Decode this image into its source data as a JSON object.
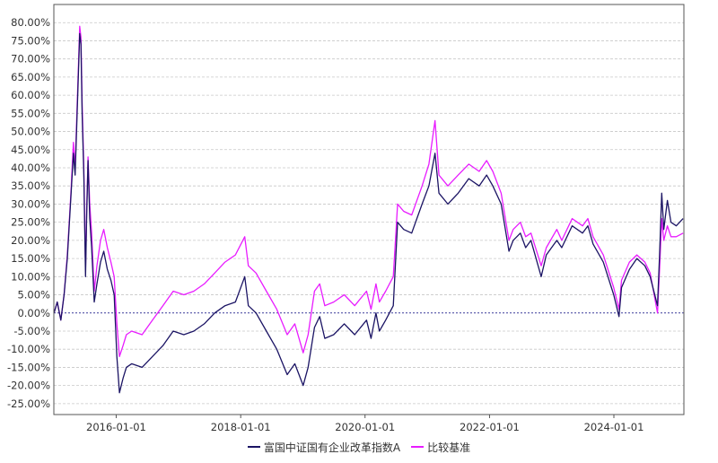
{
  "chart_data": {
    "type": "line",
    "title": "",
    "xlabel": "",
    "ylabel": "",
    "x_tick_labels": [
      "2016-01-01",
      "2018-01-01",
      "2020-01-01",
      "2022-01-01",
      "2024-01-01"
    ],
    "y_tick_labels": [
      "80.00%",
      "75.00%",
      "70.00%",
      "65.00%",
      "60.00%",
      "55.00%",
      "50.00%",
      "45.00%",
      "40.00%",
      "35.00%",
      "30.00%",
      "25.00%",
      "20.00%",
      "15.00%",
      "10.00%",
      "5.00%",
      "0.00%",
      "-5.00%",
      "-10.00%",
      "-15.00%",
      "-20.00%",
      "-25.00%"
    ],
    "x_range": [
      "2014-12-31",
      "2025-02-15"
    ],
    "ylim": [
      -28,
      85
    ],
    "grid": "horizontal dashed",
    "legend_position": "bottom",
    "series": [
      {
        "name": "富国中证国有企业改革指数A",
        "color": "#1b1464",
        "points": [
          [
            "2015-01-01",
            0
          ],
          [
            "2015-01-20",
            3
          ],
          [
            "2015-02-10",
            -2
          ],
          [
            "2015-03-01",
            5
          ],
          [
            "2015-03-20",
            15
          ],
          [
            "2015-04-10",
            32
          ],
          [
            "2015-04-25",
            44
          ],
          [
            "2015-05-05",
            38
          ],
          [
            "2015-05-20",
            60
          ],
          [
            "2015-06-01",
            77
          ],
          [
            "2015-06-08",
            74
          ],
          [
            "2015-06-15",
            55
          ],
          [
            "2015-06-25",
            38
          ],
          [
            "2015-07-05",
            10
          ],
          [
            "2015-07-12",
            27
          ],
          [
            "2015-07-20",
            42
          ],
          [
            "2015-07-30",
            26
          ],
          [
            "2015-08-10",
            18
          ],
          [
            "2015-08-25",
            3
          ],
          [
            "2015-09-10",
            8
          ],
          [
            "2015-10-01",
            14
          ],
          [
            "2015-10-20",
            17
          ],
          [
            "2015-11-10",
            12
          ],
          [
            "2015-12-01",
            9
          ],
          [
            "2015-12-20",
            5
          ],
          [
            "2016-01-05",
            -12
          ],
          [
            "2016-01-20",
            -22
          ],
          [
            "2016-02-10",
            -18
          ],
          [
            "2016-03-01",
            -15
          ],
          [
            "2016-04-01",
            -14
          ],
          [
            "2016-06-01",
            -15
          ],
          [
            "2016-08-01",
            -12
          ],
          [
            "2016-10-01",
            -9
          ],
          [
            "2016-12-01",
            -5
          ],
          [
            "2017-02-01",
            -6
          ],
          [
            "2017-04-01",
            -5
          ],
          [
            "2017-06-01",
            -3
          ],
          [
            "2017-08-01",
            0
          ],
          [
            "2017-10-01",
            2
          ],
          [
            "2017-12-01",
            3
          ],
          [
            "2018-01-25",
            10
          ],
          [
            "2018-02-15",
            2
          ],
          [
            "2018-04-01",
            0
          ],
          [
            "2018-06-01",
            -5
          ],
          [
            "2018-08-01",
            -10
          ],
          [
            "2018-10-01",
            -17
          ],
          [
            "2018-11-15",
            -14
          ],
          [
            "2019-01-03",
            -20
          ],
          [
            "2019-02-01",
            -15
          ],
          [
            "2019-03-10",
            -4
          ],
          [
            "2019-04-10",
            -1
          ],
          [
            "2019-05-10",
            -7
          ],
          [
            "2019-07-01",
            -6
          ],
          [
            "2019-09-01",
            -3
          ],
          [
            "2019-11-01",
            -6
          ],
          [
            "2020-01-10",
            -2
          ],
          [
            "2020-02-05",
            -7
          ],
          [
            "2020-03-05",
            0
          ],
          [
            "2020-03-25",
            -5
          ],
          [
            "2020-05-01",
            -2
          ],
          [
            "2020-06-15",
            2
          ],
          [
            "2020-07-10",
            25
          ],
          [
            "2020-08-15",
            23
          ],
          [
            "2020-10-01",
            22
          ],
          [
            "2020-12-01",
            30
          ],
          [
            "2021-01-10",
            35
          ],
          [
            "2021-02-15",
            44
          ],
          [
            "2021-03-10",
            33
          ],
          [
            "2021-05-01",
            30
          ],
          [
            "2021-07-01",
            33
          ],
          [
            "2021-09-01",
            37
          ],
          [
            "2021-11-01",
            35
          ],
          [
            "2021-12-15",
            38
          ],
          [
            "2022-01-20",
            35
          ],
          [
            "2022-03-10",
            30
          ],
          [
            "2022-04-25",
            17
          ],
          [
            "2022-05-20",
            20
          ],
          [
            "2022-07-01",
            22
          ],
          [
            "2022-08-01",
            18
          ],
          [
            "2022-09-01",
            20
          ],
          [
            "2022-10-31",
            10
          ],
          [
            "2022-11-30",
            16
          ],
          [
            "2023-01-31",
            20
          ],
          [
            "2023-03-01",
            18
          ],
          [
            "2023-05-01",
            24
          ],
          [
            "2023-07-01",
            22
          ],
          [
            "2023-08-01",
            24
          ],
          [
            "2023-09-01",
            19
          ],
          [
            "2023-10-31",
            14
          ],
          [
            "2023-12-31",
            5
          ],
          [
            "2024-01-31",
            -1
          ],
          [
            "2024-02-15",
            7
          ],
          [
            "2024-04-01",
            12
          ],
          [
            "2024-05-15",
            15
          ],
          [
            "2024-07-01",
            13
          ],
          [
            "2024-08-01",
            10
          ],
          [
            "2024-09-13",
            2
          ],
          [
            "2024-09-25",
            16
          ],
          [
            "2024-10-08",
            33
          ],
          [
            "2024-10-20",
            23
          ],
          [
            "2024-11-10",
            31
          ],
          [
            "2024-12-01",
            25
          ],
          [
            "2025-01-01",
            24
          ],
          [
            "2025-02-10",
            26
          ]
        ]
      },
      {
        "name": "比较基准",
        "color": "#e81cff",
        "points": [
          [
            "2015-01-01",
            0
          ],
          [
            "2015-01-20",
            3
          ],
          [
            "2015-02-10",
            -2
          ],
          [
            "2015-03-01",
            5
          ],
          [
            "2015-03-20",
            16
          ],
          [
            "2015-04-10",
            33
          ],
          [
            "2015-04-25",
            47
          ],
          [
            "2015-05-05",
            40
          ],
          [
            "2015-05-20",
            62
          ],
          [
            "2015-06-01",
            79
          ],
          [
            "2015-06-08",
            76
          ],
          [
            "2015-06-15",
            58
          ],
          [
            "2015-06-25",
            40
          ],
          [
            "2015-07-05",
            12
          ],
          [
            "2015-07-12",
            29
          ],
          [
            "2015-07-20",
            43
          ],
          [
            "2015-07-30",
            30
          ],
          [
            "2015-08-10",
            22
          ],
          [
            "2015-08-25",
            6
          ],
          [
            "2015-09-10",
            13
          ],
          [
            "2015-10-01",
            20
          ],
          [
            "2015-10-20",
            23
          ],
          [
            "2015-11-10",
            18
          ],
          [
            "2015-12-01",
            14
          ],
          [
            "2015-12-20",
            10
          ],
          [
            "2016-01-05",
            -3
          ],
          [
            "2016-01-20",
            -12
          ],
          [
            "2016-02-10",
            -9
          ],
          [
            "2016-03-01",
            -6
          ],
          [
            "2016-04-01",
            -5
          ],
          [
            "2016-06-01",
            -6
          ],
          [
            "2016-08-01",
            -2
          ],
          [
            "2016-10-01",
            2
          ],
          [
            "2016-12-01",
            6
          ],
          [
            "2017-02-01",
            5
          ],
          [
            "2017-04-01",
            6
          ],
          [
            "2017-06-01",
            8
          ],
          [
            "2017-08-01",
            11
          ],
          [
            "2017-10-01",
            14
          ],
          [
            "2017-12-01",
            16
          ],
          [
            "2018-01-25",
            21
          ],
          [
            "2018-02-15",
            13
          ],
          [
            "2018-04-01",
            11
          ],
          [
            "2018-06-01",
            6
          ],
          [
            "2018-08-01",
            1
          ],
          [
            "2018-10-01",
            -6
          ],
          [
            "2018-11-15",
            -3
          ],
          [
            "2019-01-03",
            -11
          ],
          [
            "2019-02-01",
            -6
          ],
          [
            "2019-03-10",
            6
          ],
          [
            "2019-04-10",
            8
          ],
          [
            "2019-05-10",
            2
          ],
          [
            "2019-07-01",
            3
          ],
          [
            "2019-09-01",
            5
          ],
          [
            "2019-11-01",
            2
          ],
          [
            "2020-01-10",
            6
          ],
          [
            "2020-02-05",
            1
          ],
          [
            "2020-03-05",
            8
          ],
          [
            "2020-03-25",
            3
          ],
          [
            "2020-05-01",
            6
          ],
          [
            "2020-06-15",
            10
          ],
          [
            "2020-07-10",
            30
          ],
          [
            "2020-08-15",
            28
          ],
          [
            "2020-10-01",
            27
          ],
          [
            "2020-12-01",
            35
          ],
          [
            "2021-01-10",
            41
          ],
          [
            "2021-02-15",
            53
          ],
          [
            "2021-03-10",
            38
          ],
          [
            "2021-05-01",
            35
          ],
          [
            "2021-07-01",
            38
          ],
          [
            "2021-09-01",
            41
          ],
          [
            "2021-11-01",
            39
          ],
          [
            "2021-12-15",
            42
          ],
          [
            "2022-01-20",
            39
          ],
          [
            "2022-03-10",
            33
          ],
          [
            "2022-04-25",
            20
          ],
          [
            "2022-05-20",
            23
          ],
          [
            "2022-07-01",
            25
          ],
          [
            "2022-08-01",
            21
          ],
          [
            "2022-09-01",
            22
          ],
          [
            "2022-10-31",
            13
          ],
          [
            "2022-11-30",
            18
          ],
          [
            "2023-01-31",
            23
          ],
          [
            "2023-03-01",
            20
          ],
          [
            "2023-05-01",
            26
          ],
          [
            "2023-07-01",
            24
          ],
          [
            "2023-08-01",
            26
          ],
          [
            "2023-09-01",
            21
          ],
          [
            "2023-10-31",
            16
          ],
          [
            "2023-12-31",
            7
          ],
          [
            "2024-01-31",
            1
          ],
          [
            "2024-02-15",
            9
          ],
          [
            "2024-04-01",
            14
          ],
          [
            "2024-05-15",
            16
          ],
          [
            "2024-07-01",
            14
          ],
          [
            "2024-08-01",
            11
          ],
          [
            "2024-09-13",
            0
          ],
          [
            "2024-09-25",
            12
          ],
          [
            "2024-10-08",
            26
          ],
          [
            "2024-10-20",
            20
          ],
          [
            "2024-11-10",
            24
          ],
          [
            "2024-12-01",
            21
          ],
          [
            "2025-01-01",
            21
          ],
          [
            "2025-02-10",
            22
          ]
        ]
      }
    ]
  }
}
